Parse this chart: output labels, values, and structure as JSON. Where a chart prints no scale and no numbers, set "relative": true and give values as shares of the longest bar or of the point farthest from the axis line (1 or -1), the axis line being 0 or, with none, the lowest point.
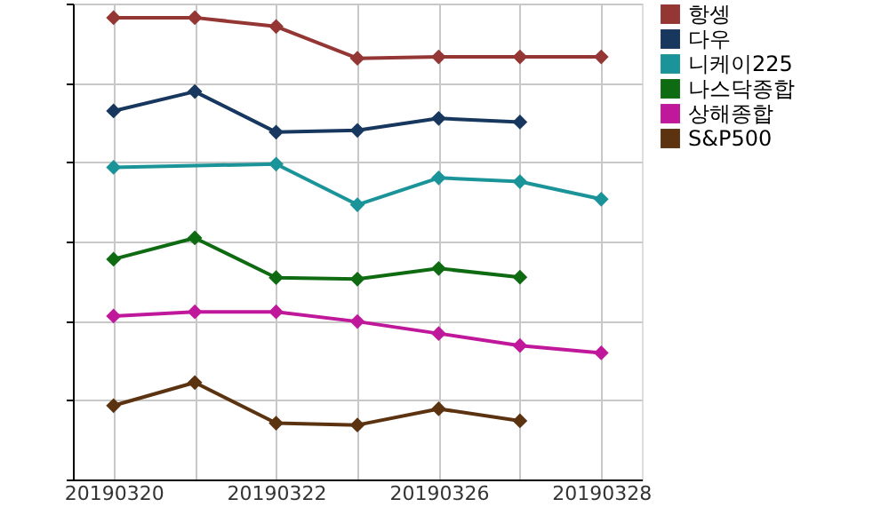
{
  "chart_data": {
    "type": "line",
    "relative": true,
    "categories": [
      "20190320",
      null,
      "20190322",
      null,
      "20190326",
      null,
      "20190328"
    ],
    "series": [
      {
        "name": "항셍",
        "color": "#943634",
        "values": [
          1,
          1,
          0.981,
          0.912,
          0.915,
          0.915,
          0.915
        ]
      },
      {
        "name": "다우",
        "color": "#17375e",
        "values": [
          0.798,
          0.84,
          0.752,
          0.756,
          0.782,
          0.774,
          null
        ]
      },
      {
        "name": "니케이225",
        "color": "#1b9499",
        "values": [
          0.676,
          null,
          0.683,
          0.595,
          0.653,
          0.645,
          0.607
        ]
      },
      {
        "name": "나스닥종합",
        "color": "#0f6b12",
        "values": [
          0.477,
          0.523,
          0.437,
          0.434,
          0.457,
          0.438,
          null
        ]
      },
      {
        "name": "상해종합",
        "color": "#c0189b",
        "values": [
          0.354,
          0.363,
          0.363,
          0.342,
          0.316,
          0.29,
          0.274
        ]
      },
      {
        "name": "S&P500",
        "color": "#5c3310",
        "values": [
          0.16,
          0.21,
          0.122,
          0.118,
          0.153,
          0.127,
          null
        ]
      }
    ],
    "grid": true,
    "legend": "right",
    "marker": "diamond",
    "line_style": "solid"
  }
}
